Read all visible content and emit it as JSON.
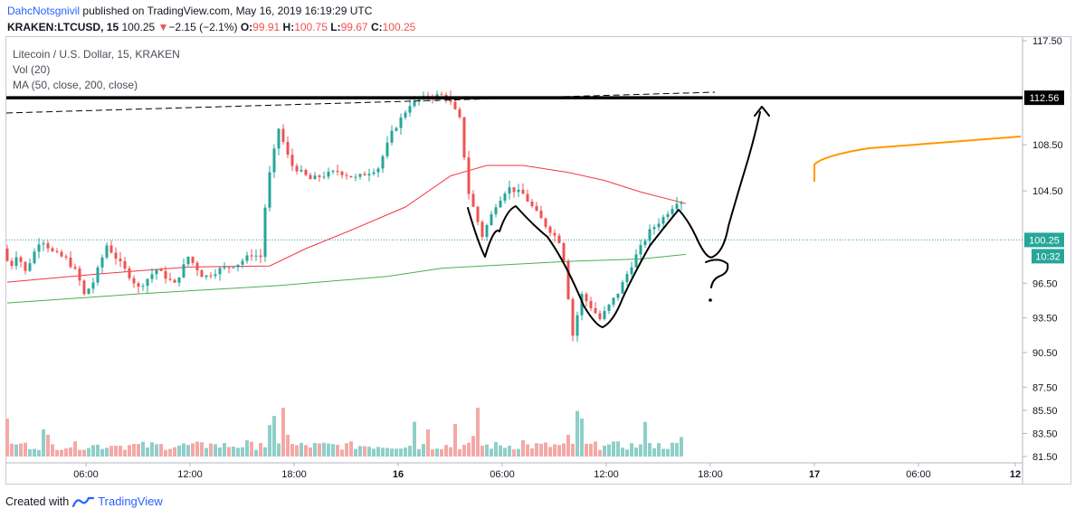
{
  "header": {
    "user": "DahcNotsgnivil",
    "published_text": "published on TradingView.com, May 16, 2019 16:19:29 UTC",
    "symbol": "KRAKEN:LTCUSD, 15",
    "price": "100.25",
    "change_arrow": "▼",
    "change": "−2.15 (−2.1%)",
    "o_label": "O:",
    "o_value": "99.91",
    "h_label": "H:",
    "h_value": "100.75",
    "l_label": "L:",
    "l_value": "99.67",
    "c_label": "C:",
    "c_value": "100.25"
  },
  "legend": {
    "line1": "Litecoin / U.S. Dollar, 15, KRAKEN",
    "line2": "Vol (20)",
    "line3": "MA (50, close, 200, close)"
  },
  "footer": {
    "created_with": "Created with",
    "brand": "TradingView"
  },
  "colors": {
    "up": "#26a69a",
    "down": "#ef5350",
    "up_vol": "#8fcfc9",
    "down_vol": "#f4a9a7",
    "ma50": "#f23645",
    "ma200": "#4caf50",
    "last_price": "#26a69a",
    "orange_line": "#ff9800",
    "drawing": "#000000"
  },
  "chart_data": {
    "type": "candlestick",
    "symbol": "KRAKEN:LTCUSD",
    "interval": "15",
    "y_ticks": [
      "117.50",
      "108.50",
      "104.50",
      "96.50",
      "93.50",
      "90.50",
      "87.50",
      "85.50",
      "83.50",
      "81.50"
    ],
    "x_ticks": [
      "06:00",
      "12:00",
      "18:00",
      "16",
      "06:00",
      "12:00",
      "18:00",
      "17",
      "06:00",
      "12"
    ],
    "price_markers": {
      "resistance": {
        "value": 112.56,
        "label": "112.56"
      },
      "last": {
        "value": 100.25,
        "label": "100.25",
        "countdown": "10:32"
      }
    },
    "price_anchors": [
      [
        0,
        99.5
      ],
      [
        8,
        97.8
      ],
      [
        16,
        99.1
      ],
      [
        25,
        97.5
      ],
      [
        42,
        100.4
      ],
      [
        55,
        99.2
      ],
      [
        70,
        98.6
      ],
      [
        82,
        97.4
      ],
      [
        90,
        95.5
      ],
      [
        100,
        96.6
      ],
      [
        115,
        99.8
      ],
      [
        130,
        98.2
      ],
      [
        150,
        96.1
      ],
      [
        170,
        97.7
      ],
      [
        190,
        96.4
      ],
      [
        205,
        98.8
      ],
      [
        222,
        97.0
      ],
      [
        240,
        97.7
      ],
      [
        260,
        98.2
      ],
      [
        275,
        99.0
      ],
      [
        285,
        98.8
      ],
      [
        292,
        104.8
      ],
      [
        305,
        109.9
      ],
      [
        318,
        106.8
      ],
      [
        340,
        105.5
      ],
      [
        370,
        106.2
      ],
      [
        390,
        105.6
      ],
      [
        415,
        106.5
      ],
      [
        430,
        109.5
      ],
      [
        450,
        112.0
      ],
      [
        470,
        112.7
      ],
      [
        490,
        112.8
      ],
      [
        505,
        110.7
      ],
      [
        515,
        104.3
      ],
      [
        530,
        100.6
      ],
      [
        545,
        103.3
      ],
      [
        558,
        104.8
      ],
      [
        575,
        104.2
      ],
      [
        600,
        101.5
      ],
      [
        618,
        99.9
      ],
      [
        630,
        92.0
      ],
      [
        640,
        95.5
      ],
      [
        660,
        93.4
      ],
      [
        680,
        95.7
      ],
      [
        700,
        98.9
      ],
      [
        715,
        101.0
      ],
      [
        730,
        102.2
      ],
      [
        745,
        103.6
      ]
    ],
    "volume_spikes": [
      [
        0,
        0.35
      ],
      [
        15,
        0.12
      ],
      [
        40,
        0.25
      ],
      [
        45,
        0.2
      ],
      [
        120,
        0.1
      ],
      [
        150,
        0.12
      ],
      [
        210,
        0.1
      ],
      [
        225,
        0.12
      ],
      [
        265,
        0.15
      ],
      [
        278,
        0.25
      ],
      [
        292,
        0.58
      ],
      [
        297,
        0.75
      ],
      [
        305,
        0.45
      ],
      [
        310,
        0.2
      ],
      [
        380,
        0.12
      ],
      [
        450,
        0.32
      ],
      [
        465,
        0.25
      ],
      [
        495,
        0.3
      ],
      [
        513,
        0.38
      ],
      [
        520,
        0.45
      ],
      [
        570,
        0.15
      ],
      [
        620,
        0.2
      ],
      [
        630,
        0.42
      ],
      [
        635,
        0.35
      ],
      [
        660,
        0.1
      ],
      [
        690,
        0.12
      ],
      [
        705,
        0.32
      ],
      [
        712,
        0.25
      ],
      [
        745,
        0.18
      ]
    ],
    "ma50_points": [
      [
        0,
        96.6
      ],
      [
        100,
        97.3
      ],
      [
        200,
        97.9
      ],
      [
        290,
        98.0
      ],
      [
        330,
        99.5
      ],
      [
        380,
        101.1
      ],
      [
        440,
        103.1
      ],
      [
        490,
        105.8
      ],
      [
        530,
        106.7
      ],
      [
        570,
        106.7
      ],
      [
        620,
        106.1
      ],
      [
        660,
        105.4
      ],
      [
        700,
        104.4
      ],
      [
        750,
        103.4
      ]
    ],
    "ma200_points": [
      [
        0,
        94.8
      ],
      [
        150,
        95.6
      ],
      [
        300,
        96.3
      ],
      [
        420,
        97.1
      ],
      [
        480,
        97.8
      ],
      [
        550,
        98.1
      ],
      [
        620,
        98.4
      ],
      [
        700,
        98.6
      ],
      [
        750,
        99.0
      ]
    ]
  }
}
